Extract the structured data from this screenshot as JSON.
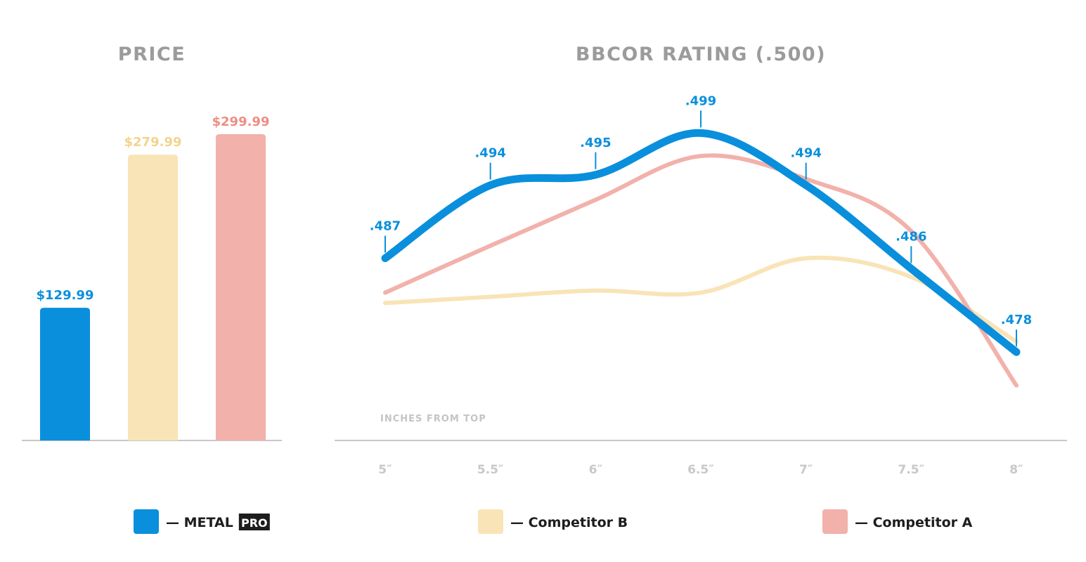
{
  "chart_data": [
    {
      "type": "bar",
      "title": "PRICE",
      "categories": [
        "METAL PRO",
        "Competitor B",
        "Competitor A"
      ],
      "values": [
        129.99,
        279.99,
        299.99
      ],
      "data_labels": [
        "$129.99",
        "$279.99",
        "$299.99"
      ],
      "colors": [
        "#0a8fdc",
        "#f9e4b7",
        "#f2b1ab"
      ],
      "label_colors": [
        "#0a8fdc",
        "#f3d48c",
        "#ee8d85"
      ],
      "ylim": [
        0,
        300
      ],
      "grid": false
    },
    {
      "type": "line",
      "title": "BBCOR RATING (.500)",
      "xlabel": "INCHES FROM TOP",
      "x": [
        5,
        5.5,
        6,
        6.5,
        7,
        7.5,
        8
      ],
      "x_tick_labels": [
        "5″",
        "5.5″",
        "6″",
        "6.5″",
        "7″",
        "7.5″",
        "8″"
      ],
      "ylim": [
        0.47,
        0.503
      ],
      "grid": false,
      "series": [
        {
          "name": "Competitor B",
          "color": "#f9e4b7",
          "values": [
            0.4827,
            0.4833,
            0.4839,
            0.4837,
            0.487,
            0.4852,
            0.479
          ]
        },
        {
          "name": "Competitor A",
          "color": "#f2b1ab",
          "values": [
            0.4837,
            0.4882,
            0.4926,
            0.4968,
            0.4946,
            0.4896,
            0.4748
          ]
        },
        {
          "name": "METAL PRO",
          "color": "#0a8fdc",
          "values": [
            0.487,
            0.494,
            0.495,
            0.499,
            0.494,
            0.486,
            0.478
          ],
          "data_labels": [
            ".487",
            ".494",
            ".495",
            ".499",
            ".494",
            ".486",
            ".478"
          ]
        }
      ]
    }
  ],
  "legend": [
    {
      "label": "METAL",
      "badge": "PRO",
      "color": "#0a8fdc",
      "dash": "—"
    },
    {
      "label": "Competitor B",
      "color": "#f9e4b7",
      "dash": "—"
    },
    {
      "label": "Competitor A",
      "color": "#f2b1ab",
      "dash": "—"
    }
  ]
}
